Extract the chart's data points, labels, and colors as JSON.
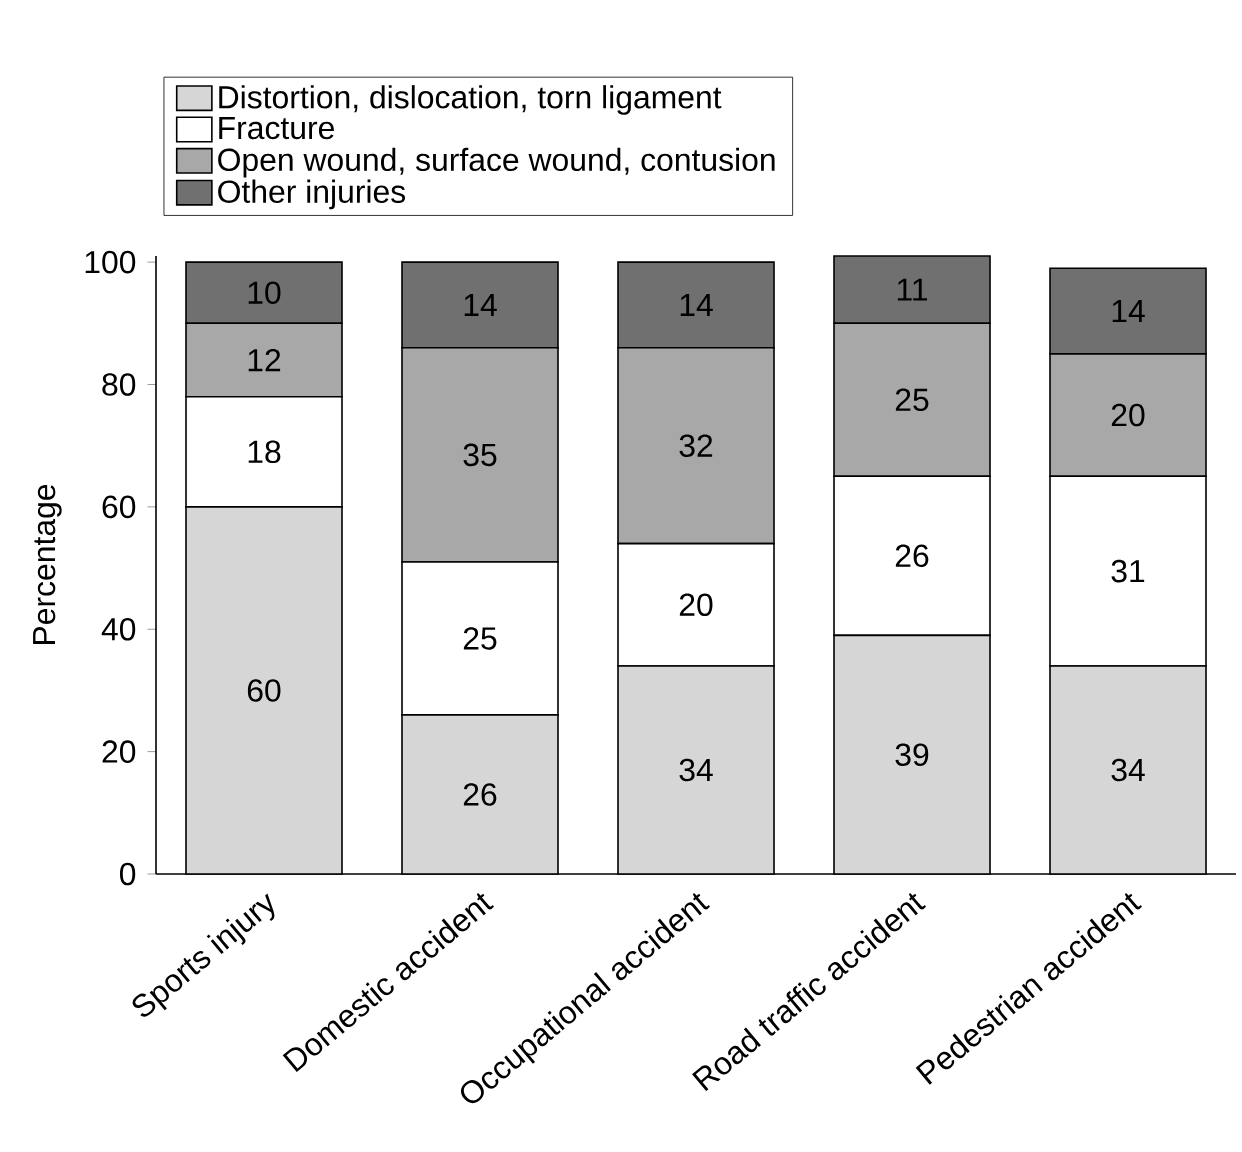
{
  "chart_data": {
    "type": "bar",
    "stacked": true,
    "ylabel": "Percentage",
    "categories": [
      "Sports injury",
      "Domestic accident",
      "Occupational accident",
      "Road traffic accident",
      "Pedestrian accident"
    ],
    "series": [
      {
        "name": "Distortion, dislocation, torn ligament",
        "color": "#d6d6d6",
        "values": [
          60,
          26,
          34,
          39,
          34
        ]
      },
      {
        "name": "Fracture",
        "color": "#ffffff",
        "values": [
          18,
          25,
          20,
          26,
          31
        ]
      },
      {
        "name": "Open wound, surface wound, contusion",
        "color": "#a8a8a8",
        "values": [
          12,
          35,
          32,
          25,
          20
        ]
      },
      {
        "name": "Other injuries",
        "color": "#707070",
        "values": [
          10,
          14,
          14,
          11,
          14
        ]
      }
    ],
    "ylim": [
      0,
      101
    ],
    "yticks": [
      0,
      20,
      40,
      60,
      80,
      100
    ],
    "data_labels": true,
    "legend": "top",
    "grid": false
  }
}
